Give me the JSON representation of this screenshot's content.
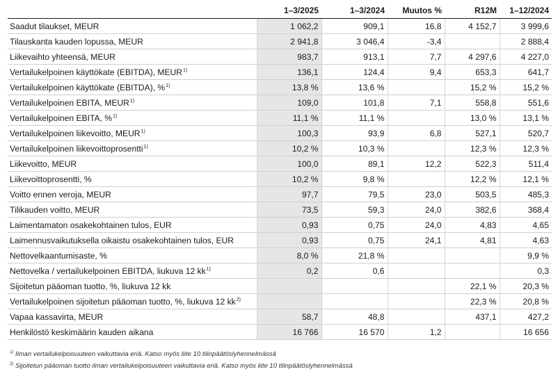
{
  "headers": [
    "",
    "1–3/2025",
    "1–3/2024",
    "Muutos %",
    "R12M",
    "1–12/2024"
  ],
  "rows": [
    {
      "label": "Saadut tilaukset, MEUR",
      "sup": "",
      "q25": "1 062,2",
      "q24": "909,1",
      "chg": "16,8",
      "r12": "4 152,7",
      "fy": "3 999,6"
    },
    {
      "label": "Tilauskanta kauden lopussa, MEUR",
      "sup": "",
      "q25": "2 941,8",
      "q24": "3 046,4",
      "chg": "-3,4",
      "r12": "",
      "fy": "2 888,4"
    },
    {
      "label": "Liikevaihto yhteensä, MEUR",
      "sup": "",
      "q25": "983,7",
      "q24": "913,1",
      "chg": "7,7",
      "r12": "4 297,6",
      "fy": "4 227,0"
    },
    {
      "label": "Vertailukelpoinen käyttökate (EBITDA), MEUR",
      "sup": "1)",
      "q25": "136,1",
      "q24": "124,4",
      "chg": "9,4",
      "r12": "653,3",
      "fy": "641,7"
    },
    {
      "label": "Vertailukelpoinen käyttökate (EBITDA), %",
      "sup": "1)",
      "q25": "13,8 %",
      "q24": "13,6 %",
      "chg": "",
      "r12": "15,2 %",
      "fy": "15,2 %"
    },
    {
      "label": "Vertailukelpoinen EBITA, MEUR",
      "sup": "1)",
      "q25": "109,0",
      "q24": "101,8",
      "chg": "7,1",
      "r12": "558,8",
      "fy": "551,6"
    },
    {
      "label": "Vertailukelpoinen EBITA, %",
      "sup": "1)",
      "q25": "11,1 %",
      "q24": "11,1 %",
      "chg": "",
      "r12": "13,0 %",
      "fy": "13,1 %"
    },
    {
      "label": "Vertailukelpoinen liikevoitto, MEUR",
      "sup": "1)",
      "q25": "100,3",
      "q24": "93,9",
      "chg": "6,8",
      "r12": "527,1",
      "fy": "520,7"
    },
    {
      "label": "Vertailukelpoinen liikevoittoprosentti",
      "sup": "1)",
      "q25": "10,2 %",
      "q24": "10,3 %",
      "chg": "",
      "r12": "12,3 %",
      "fy": "12,3 %"
    },
    {
      "label": "Liikevoitto, MEUR",
      "sup": "",
      "q25": "100,0",
      "q24": "89,1",
      "chg": "12,2",
      "r12": "522,3",
      "fy": "511,4"
    },
    {
      "label": "Liikevoittoprosentti, %",
      "sup": "",
      "q25": "10,2 %",
      "q24": "9,8 %",
      "chg": "",
      "r12": "12,2 %",
      "fy": "12,1 %"
    },
    {
      "label": "Voitto ennen veroja, MEUR",
      "sup": "",
      "q25": "97,7",
      "q24": "79,5",
      "chg": "23,0",
      "r12": "503,5",
      "fy": "485,3"
    },
    {
      "label": "Tilikauden voitto, MEUR",
      "sup": "",
      "q25": "73,5",
      "q24": "59,3",
      "chg": "24,0",
      "r12": "382,6",
      "fy": "368,4"
    },
    {
      "label": "Laimentamaton osakekohtainen tulos, EUR",
      "sup": "",
      "q25": "0,93",
      "q24": "0,75",
      "chg": "24,0",
      "r12": "4,83",
      "fy": "4,65"
    },
    {
      "label": "Laimennusvaikutuksella oikaistu osakekohtainen tulos, EUR",
      "sup": "",
      "q25": "0,93",
      "q24": "0,75",
      "chg": "24,1",
      "r12": "4,81",
      "fy": "4,63"
    },
    {
      "label": "Nettovelkaantumisaste, %",
      "sup": "",
      "q25": "8,0 %",
      "q24": "21,8 %",
      "chg": "",
      "r12": "",
      "fy": "9,9 %"
    },
    {
      "label": "Nettovelka / vertailukelpoinen EBITDA, liukuva 12 kk",
      "sup": "1)",
      "q25": "0,2",
      "q24": "0,6",
      "chg": "",
      "r12": "",
      "fy": "0,3"
    },
    {
      "label": "Sijoitetun pääoman tuotto, %, liukuva 12 kk",
      "sup": "",
      "q25": "",
      "q24": "",
      "chg": "",
      "r12": "22,1 %",
      "fy": "20,3 %"
    },
    {
      "label": "Vertailukelpoinen sijoitetun pääoman tuotto, %, liukuva 12 kk",
      "sup": "2)",
      "q25": "",
      "q24": "",
      "chg": "",
      "r12": "22,3 %",
      "fy": "20,8 %"
    },
    {
      "label": "Vapaa kassavirta, MEUR",
      "sup": "",
      "q25": "58,7",
      "q24": "48,8",
      "chg": "",
      "r12": "437,1",
      "fy": "427,2"
    },
    {
      "label": "Henkilöstö keskimäärin kauden aikana",
      "sup": "",
      "q25": "16 766",
      "q24": "16 570",
      "chg": "1,2",
      "r12": "",
      "fy": "16 656"
    }
  ],
  "footnotes": [
    {
      "mark": "1)",
      "text": "Ilman vertailukelpoisuuteen vaikuttavia eriä. Katso myös liite 10 tilinpäätöslyhennelmässä"
    },
    {
      "mark": "2)",
      "text": "Sijoitetun pääoman tuotto ilman vertailukelpoisuuteen vaikuttavia eriä. Katso myös liite 10 tilinpäätöslyhennelmässä"
    }
  ]
}
